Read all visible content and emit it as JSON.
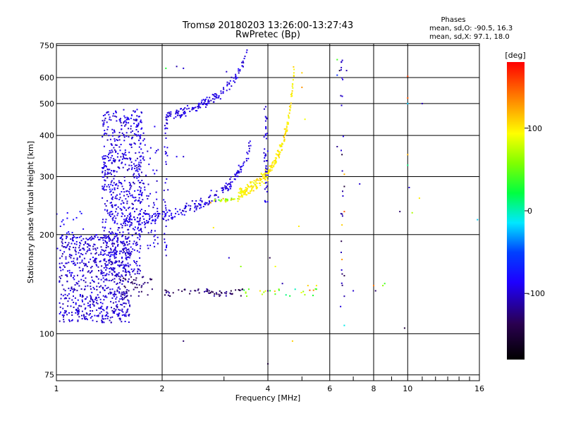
{
  "chart_data": {
    "type": "scatter",
    "title": "Tromsø 20180203 13:26:00-13:27:43",
    "subtitle": "RwPretec (Bp)",
    "xlabel": "Frequency [MHz]",
    "ylabel": "Stationary phase Virtual Height [km]",
    "x_scale": "log",
    "y_scale": "log",
    "xlim": [
      1,
      16
    ],
    "ylim": [
      72,
      760
    ],
    "x_ticks": [
      1,
      2,
      4,
      6,
      8,
      10,
      16
    ],
    "y_ticks": [
      75,
      100,
      200,
      300,
      400,
      500,
      600,
      750
    ],
    "grid": true,
    "stats": {
      "heading": "Phases",
      "line1": "mean, sd,O: -90.5, 16.3",
      "line2": "mean, sd,X:  97.1, 18.0"
    },
    "colorbar": {
      "unit": "[deg]",
      "range": [
        -180,
        180
      ],
      "ticks": [
        100,
        0,
        -100
      ]
    },
    "clusters": [
      {
        "phase": -100,
        "spread": 12,
        "count": 700,
        "x": [
          1.02,
          1.62
        ],
        "y": [
          108,
          200
        ]
      },
      {
        "phase": -95,
        "spread": 14,
        "count": 650,
        "x": [
          1.35,
          1.75
        ],
        "y": [
          150,
          480
        ]
      },
      {
        "phase": -95,
        "spread": 12,
        "count": 90,
        "x": [
          1.7,
          1.95
        ],
        "y": [
          180,
          440
        ]
      },
      {
        "phase": -130,
        "spread": 15,
        "count": 40,
        "x": [
          1.5,
          1.9
        ],
        "y": [
          130,
          150
        ]
      },
      {
        "phase": -85,
        "spread": 10,
        "count": 20,
        "x": [
          1.0,
          1.2
        ],
        "y": [
          180,
          235
        ]
      }
    ],
    "traces": [
      {
        "name_hint": "O-mode F trace",
        "phase": -95,
        "spread": 12,
        "count": 220,
        "x": [
          1.55,
          3.6
        ],
        "y0": 208,
        "fc": 3.85,
        "power": 0.6,
        "jitter": 0.04
      },
      {
        "name_hint": "O-mode upper trace",
        "phase": -95,
        "spread": 12,
        "count": 150,
        "x": [
          2.05,
          3.55
        ],
        "y0": 415,
        "fc": 3.75,
        "power": 0.55,
        "jitter": 0.03
      },
      {
        "name_hint": "X-mode trace",
        "phase": 100,
        "spread": 12,
        "count": 230,
        "x": [
          3.3,
          4.75
        ],
        "y0": 218,
        "fc": 4.8,
        "power": 0.6,
        "jitter": 0.04
      },
      {
        "name_hint": "mixed low band",
        "phase": 70,
        "spread": 40,
        "count": 30,
        "x": [
          2.8,
          3.3
        ],
        "y0": 255,
        "fc": 99,
        "power": 0,
        "jitter": 0.01
      }
    ],
    "vertical_strands": [
      {
        "phase": -95,
        "spread": 10,
        "count": 45,
        "x": 3.95,
        "y": [
          250,
          490
        ]
      },
      {
        "phase": -95,
        "spread": 10,
        "count": 35,
        "x": 2.05,
        "y": [
          170,
          440
        ]
      },
      {
        "phase": -110,
        "spread": 25,
        "count": 25,
        "x": 6.5,
        "y": [
          110,
          690
        ]
      }
    ],
    "horizontal_bands": [
      {
        "phase": -130,
        "spread": 20,
        "count": 60,
        "x": [
          2.0,
          3.4
        ],
        "y": [
          130,
          137
        ]
      },
      {
        "phase": 60,
        "spread": 60,
        "count": 25,
        "x": [
          3.4,
          5.8
        ],
        "y": [
          130,
          137
        ]
      }
    ],
    "sparse_points": [
      [
        2.05,
        640,
        30
      ],
      [
        2.2,
        648,
        -110
      ],
      [
        2.3,
        640,
        -100
      ],
      [
        2.3,
        345,
        -100
      ],
      [
        2.2,
        345,
        -90
      ],
      [
        2.3,
        95,
        -130
      ],
      [
        3.05,
        625,
        -100
      ],
      [
        3.1,
        170,
        -100
      ],
      [
        4.0,
        81,
        -150
      ],
      [
        4.0,
        135,
        -130
      ],
      [
        4.05,
        170,
        -140
      ],
      [
        4.4,
        142,
        -110
      ],
      [
        4.7,
        95,
        110
      ],
      [
        5.0,
        620,
        110
      ],
      [
        5.0,
        560,
        130
      ],
      [
        5.1,
        448,
        90
      ],
      [
        6.3,
        680,
        40
      ],
      [
        6.3,
        610,
        -60
      ],
      [
        6.4,
        630,
        -150
      ],
      [
        6.7,
        630,
        -110
      ],
      [
        6.3,
        370,
        -120
      ],
      [
        6.5,
        350,
        -150
      ],
      [
        6.6,
        305,
        120
      ],
      [
        6.6,
        280,
        -150
      ],
      [
        6.6,
        235,
        150
      ],
      [
        6.5,
        214,
        110
      ],
      [
        6.5,
        168,
        130
      ],
      [
        6.6,
        150,
        -140
      ],
      [
        6.6,
        130,
        -110
      ],
      [
        7.0,
        135,
        -100
      ],
      [
        6.6,
        106,
        -10
      ],
      [
        7.3,
        285,
        -100
      ],
      [
        8.0,
        140,
        140
      ],
      [
        8.1,
        135,
        -130
      ],
      [
        8.5,
        140,
        60
      ],
      [
        8.6,
        142,
        40
      ],
      [
        9.8,
        104,
        -150
      ],
      [
        9.5,
        235,
        -130
      ],
      [
        10.0,
        605,
        160
      ],
      [
        10.0,
        520,
        150
      ],
      [
        10.0,
        500,
        -20
      ],
      [
        10.0,
        325,
        10
      ],
      [
        10.0,
        350,
        120
      ],
      [
        10.1,
        278,
        -100
      ],
      [
        10.3,
        233,
        70
      ],
      [
        10.8,
        258,
        100
      ],
      [
        11.0,
        500,
        -110
      ],
      [
        15.8,
        222,
        -20
      ],
      [
        2.75,
        250,
        130
      ],
      [
        2.8,
        210,
        100
      ],
      [
        4.2,
        160,
        90
      ],
      [
        3.35,
        160,
        60
      ],
      [
        5.2,
        140,
        110
      ],
      [
        5.5,
        140,
        100
      ],
      [
        4.9,
        212,
        100
      ]
    ]
  }
}
